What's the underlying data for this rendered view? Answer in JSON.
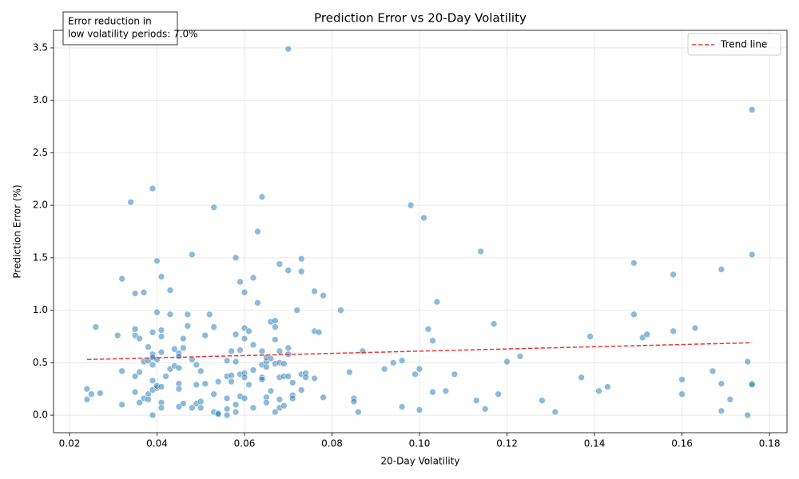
{
  "chart_data": {
    "type": "scatter",
    "title": "Prediction Error vs 20-Day Volatility",
    "x_label": "20-Day Volatility",
    "y_label": "Prediction Error (%)",
    "annotation": [
      "Error reduction in",
      "low volatility periods: 7.0%"
    ],
    "color": "#1f77b4",
    "x": [
      0.024,
      0.024,
      0.025,
      0.026,
      0.027,
      0.031,
      0.032,
      0.032,
      0.032,
      0.034,
      0.035,
      0.035,
      0.035,
      0.035,
      0.035,
      0.036,
      0.036,
      0.036,
      0.037,
      0.037,
      0.037,
      0.038,
      0.038,
      0.038,
      0.038,
      0.039,
      0.039,
      0.039,
      0.039,
      0.039,
      0.039,
      0.039,
      0.039,
      0.04,
      0.04,
      0.04,
      0.04,
      0.04,
      0.041,
      0.041,
      0.041,
      0.041,
      0.041,
      0.041,
      0.041,
      0.042,
      0.043,
      0.043,
      0.043,
      0.044,
      0.044,
      0.045,
      0.045,
      0.045,
      0.045,
      0.045,
      0.045,
      0.046,
      0.046,
      0.046,
      0.047,
      0.047,
      0.048,
      0.048,
      0.048,
      0.049,
      0.049,
      0.049,
      0.05,
      0.05,
      0.05,
      0.051,
      0.051,
      0.052,
      0.053,
      0.053,
      0.053,
      0.053,
      0.054,
      0.054,
      0.054,
      0.056,
      0.056,
      0.056,
      0.056,
      0.056,
      0.057,
      0.057,
      0.057,
      0.058,
      0.058,
      0.058,
      0.058,
      0.058,
      0.059,
      0.059,
      0.059,
      0.059,
      0.06,
      0.06,
      0.06,
      0.06,
      0.06,
      0.06,
      0.061,
      0.061,
      0.062,
      0.062,
      0.062,
      0.062,
      0.063,
      0.063,
      0.064,
      0.064,
      0.064,
      0.064,
      0.064,
      0.065,
      0.065,
      0.065,
      0.065,
      0.065,
      0.066,
      0.066,
      0.066,
      0.067,
      0.067,
      0.067,
      0.067,
      0.067,
      0.068,
      0.068,
      0.068,
      0.068,
      0.068,
      0.068,
      0.069,
      0.069,
      0.069,
      0.07,
      0.07,
      0.07,
      0.07,
      0.07,
      0.071,
      0.071,
      0.071,
      0.072,
      0.073,
      0.073,
      0.073,
      0.073,
      0.074,
      0.074,
      0.076,
      0.076,
      0.076,
      0.077,
      0.078,
      0.078,
      0.082,
      0.084,
      0.085,
      0.085,
      0.086,
      0.087,
      0.092,
      0.094,
      0.096,
      0.096,
      0.098,
      0.099,
      0.1,
      0.1,
      0.101,
      0.102,
      0.103,
      0.103,
      0.104,
      0.106,
      0.108,
      0.113,
      0.114,
      0.115,
      0.117,
      0.118,
      0.12,
      0.123,
      0.128,
      0.131,
      0.137,
      0.139,
      0.141,
      0.143,
      0.149,
      0.149,
      0.151,
      0.152,
      0.158,
      0.158,
      0.16,
      0.16,
      0.163,
      0.167,
      0.169,
      0.169,
      0.169,
      0.171,
      0.175,
      0.175,
      0.176,
      0.176,
      0.176,
      0.176
    ],
    "values": [
      0.25,
      0.15,
      0.2,
      0.84,
      0.21,
      0.76,
      1.3,
      0.42,
      0.1,
      2.03,
      1.16,
      0.82,
      0.76,
      0.37,
      0.22,
      0.73,
      0.12,
      0.41,
      1.17,
      0.51,
      0.16,
      0.2,
      0.52,
      0.15,
      0.65,
      2.16,
      0.79,
      0.58,
      0.55,
      0.48,
      0.33,
      0.24,
      0.0,
      1.47,
      0.98,
      0.53,
      0.26,
      0.28,
      1.32,
      0.81,
      0.75,
      0.6,
      0.27,
      0.12,
      0.07,
      0.37,
      1.19,
      0.96,
      0.44,
      0.63,
      0.47,
      0.59,
      0.56,
      0.45,
      0.3,
      0.25,
      0.08,
      0.73,
      0.64,
      0.11,
      0.85,
      0.96,
      1.53,
      0.53,
      0.07,
      0.11,
      0.48,
      0.29,
      0.42,
      0.13,
      0.07,
      0.76,
      0.3,
      0.96,
      1.98,
      0.84,
      0.2,
      0.03,
      0.02,
      0.32,
      0.01,
      0.37,
      0.16,
      0.06,
      0.0,
      0.52,
      0.61,
      0.38,
      0.32,
      1.5,
      0.77,
      0.51,
      0.1,
      0.03,
      0.62,
      1.27,
      0.18,
      0.39,
      1.17,
      0.83,
      0.73,
      0.4,
      0.36,
      0.16,
      0.8,
      0.29,
      1.31,
      0.67,
      0.43,
      0.07,
      1.75,
      1.07,
      2.08,
      0.61,
      0.48,
      0.36,
      0.34,
      0.17,
      0.12,
      0.46,
      0.51,
      0.55,
      0.89,
      0.54,
      0.23,
      0.9,
      0.84,
      0.72,
      0.49,
      0.03,
      1.44,
      0.61,
      0.5,
      0.36,
      0.15,
      0.07,
      0.09,
      0.37,
      0.49,
      3.49,
      0.58,
      0.64,
      0.37,
      1.38,
      0.19,
      0.16,
      0.31,
      1.0,
      1.49,
      1.37,
      0.39,
      0.24,
      0.4,
      0.36,
      1.18,
      0.8,
      0.35,
      0.79,
      1.14,
      0.17,
      1.0,
      0.41,
      0.16,
      0.13,
      0.03,
      0.61,
      0.44,
      0.5,
      0.52,
      0.08,
      2.0,
      0.39,
      0.44,
      0.05,
      1.88,
      0.82,
      0.71,
      0.22,
      1.08,
      0.23,
      0.39,
      0.14,
      1.56,
      0.06,
      0.87,
      0.2,
      0.51,
      0.56,
      0.14,
      0.03,
      0.36,
      0.75,
      0.23,
      0.27,
      1.45,
      0.96,
      0.74,
      0.77,
      1.34,
      0.8,
      0.34,
      0.2,
      0.83,
      0.42,
      1.39,
      0.3,
      0.04,
      0.15,
      0.51,
      0.0,
      0.3,
      0.29,
      2.91,
      1.53
    ],
    "trend": {
      "name": "Trend line",
      "color": "#e8383b",
      "x": [
        0.024,
        0.176
      ],
      "values": [
        0.53,
        0.69
      ]
    },
    "xlim": [
      0.01635,
      0.184
    ],
    "ylim": [
      -0.167,
      3.667
    ],
    "xticks": [
      0.02,
      0.04,
      0.06,
      0.08,
      {
        "value": 0.1,
        "label": "0.10"
      },
      0.12,
      0.14,
      0.16,
      0.18
    ],
    "yticks": [
      {
        "value": 0,
        "label": "0.0"
      },
      0.5,
      {
        "value": 1,
        "label": "1.0"
      },
      1.5,
      {
        "value": 2,
        "label": "2.0"
      },
      2.5,
      {
        "value": 3,
        "label": "3.0"
      },
      3.5
    ],
    "grid": true,
    "legend": "upper right"
  }
}
